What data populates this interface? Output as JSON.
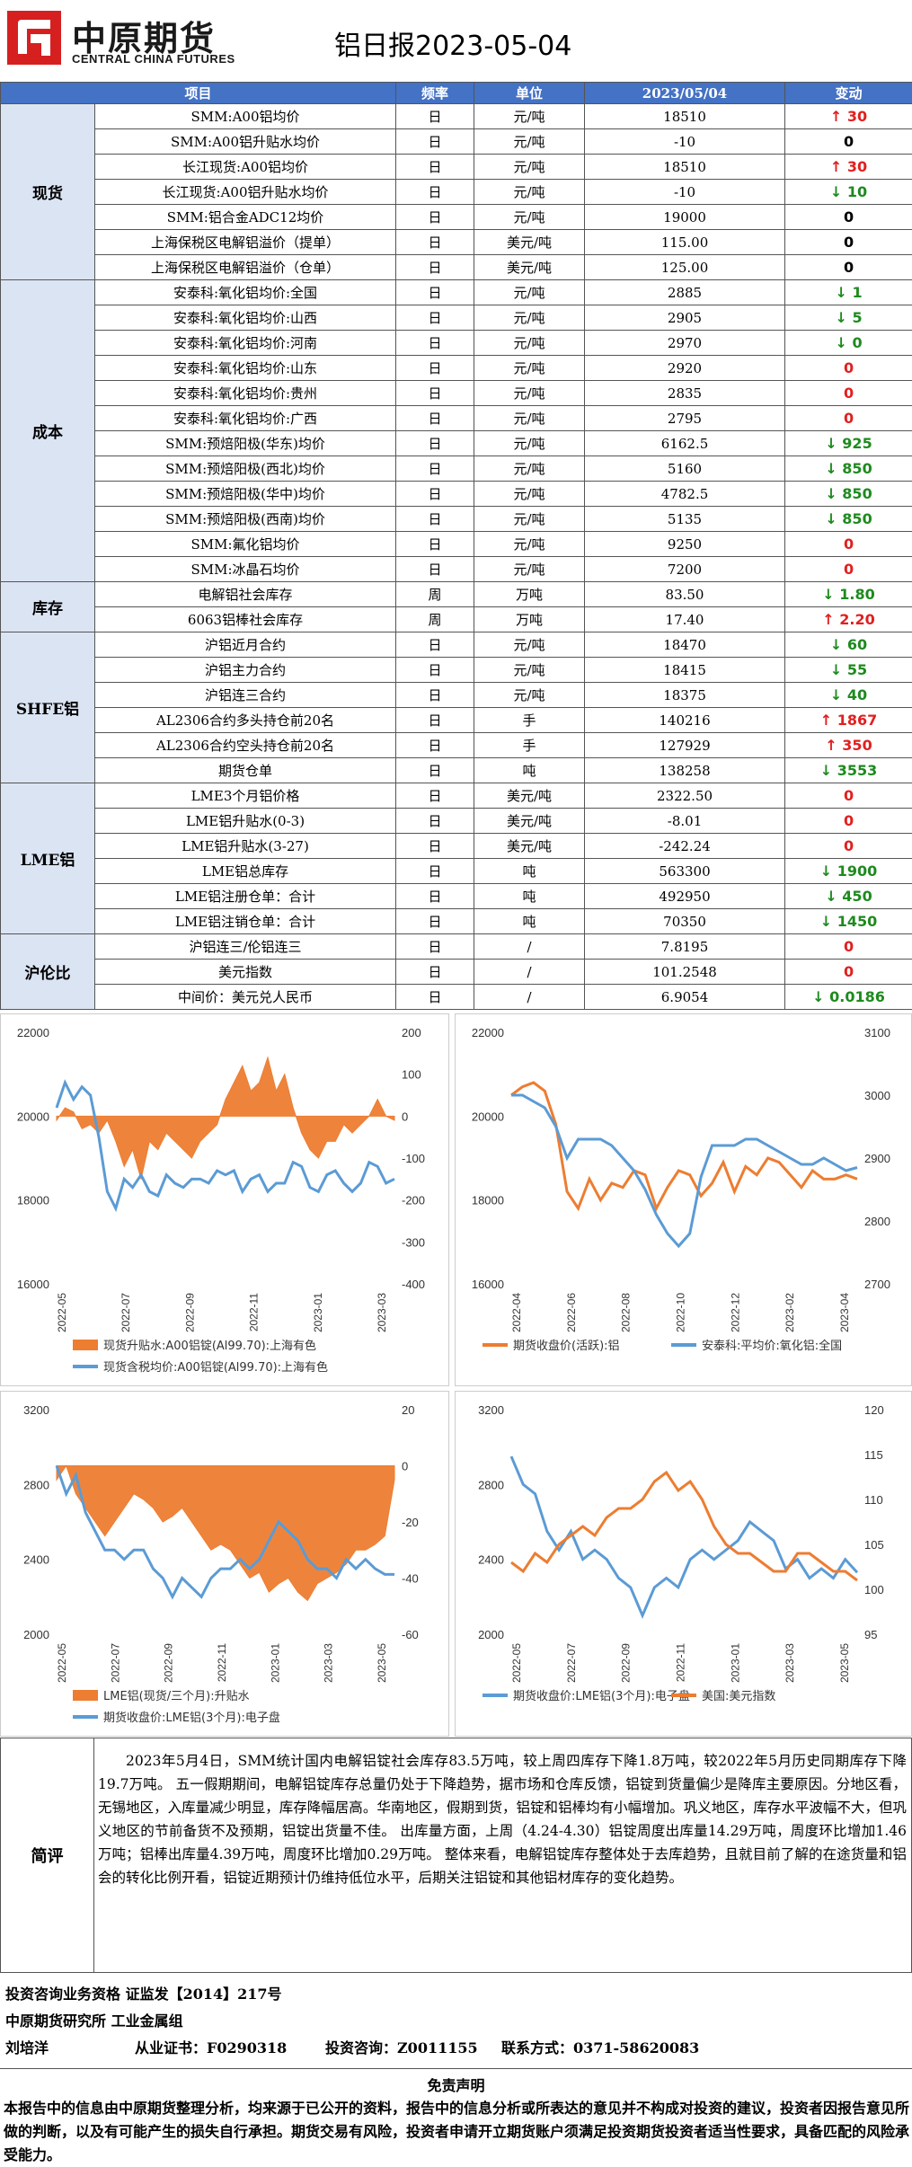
{
  "header": {
    "logo_cn": "中原期货",
    "logo_en": "CENTRAL CHINA FUTURES",
    "title": "铝日报2023-05-04"
  },
  "table": {
    "columns": [
      "项目",
      "频率",
      "单位",
      "2023/05/04",
      "变动"
    ],
    "groups": [
      {
        "category": "现货",
        "rows": [
          {
            "item": "SMM:A00铝均价",
            "freq": "日",
            "unit": "元/吨",
            "value": "18510",
            "change": "30",
            "dir": "up"
          },
          {
            "item": "SMM:A00铝升贴水均价",
            "freq": "日",
            "unit": "元/吨",
            "value": "-10",
            "change": "0",
            "dir": "flat"
          },
          {
            "item": "长江现货:A00铝均价",
            "freq": "日",
            "unit": "元/吨",
            "value": "18510",
            "change": "30",
            "dir": "up"
          },
          {
            "item": "长江现货:A00铝升贴水均价",
            "freq": "日",
            "unit": "元/吨",
            "value": "-10",
            "change": "10",
            "dir": "down"
          },
          {
            "item": "SMM:铝合金ADC12均价",
            "freq": "日",
            "unit": "元/吨",
            "value": "19000",
            "change": "0",
            "dir": "flat"
          },
          {
            "item": "上海保税区电解铝溢价（提单）",
            "freq": "日",
            "unit": "美元/吨",
            "value": "115.00",
            "change": "0",
            "dir": "flat"
          },
          {
            "item": "上海保税区电解铝溢价（仓单）",
            "freq": "日",
            "unit": "美元/吨",
            "value": "125.00",
            "change": "0",
            "dir": "flat"
          }
        ]
      },
      {
        "category": "成本",
        "rows": [
          {
            "item": "安泰科:氧化铝均价:全国",
            "freq": "日",
            "unit": "元/吨",
            "value": "2885",
            "change": "1",
            "dir": "down"
          },
          {
            "item": "安泰科:氧化铝均价:山西",
            "freq": "日",
            "unit": "元/吨",
            "value": "2905",
            "change": "5",
            "dir": "down"
          },
          {
            "item": "安泰科:氧化铝均价:河南",
            "freq": "日",
            "unit": "元/吨",
            "value": "2970",
            "change": "0",
            "dir": "down"
          },
          {
            "item": "安泰科:氧化铝均价:山东",
            "freq": "日",
            "unit": "元/吨",
            "value": "2920",
            "change": "0",
            "dir": "redzero"
          },
          {
            "item": "安泰科:氧化铝均价:贵州",
            "freq": "日",
            "unit": "元/吨",
            "value": "2835",
            "change": "0",
            "dir": "redzero"
          },
          {
            "item": "安泰科:氧化铝均价:广西",
            "freq": "日",
            "unit": "元/吨",
            "value": "2795",
            "change": "0",
            "dir": "redzero"
          },
          {
            "item": "SMM:预焙阳极(华东)均价",
            "freq": "日",
            "unit": "元/吨",
            "value": "6162.5",
            "change": "925",
            "dir": "down"
          },
          {
            "item": "SMM:预焙阳极(西北)均价",
            "freq": "日",
            "unit": "元/吨",
            "value": "5160",
            "change": "850",
            "dir": "down"
          },
          {
            "item": "SMM:预焙阳极(华中)均价",
            "freq": "日",
            "unit": "元/吨",
            "value": "4782.5",
            "change": "850",
            "dir": "down"
          },
          {
            "item": "SMM:预焙阳极(西南)均价",
            "freq": "日",
            "unit": "元/吨",
            "value": "5135",
            "change": "850",
            "dir": "down"
          },
          {
            "item": "SMM:氟化铝均价",
            "freq": "日",
            "unit": "元/吨",
            "value": "9250",
            "change": "0",
            "dir": "redzero"
          },
          {
            "item": "SMM:冰晶石均价",
            "freq": "日",
            "unit": "元/吨",
            "value": "7200",
            "change": "0",
            "dir": "redzero"
          }
        ]
      },
      {
        "category": "库存",
        "rows": [
          {
            "item": "电解铝社会库存",
            "freq": "周",
            "unit": "万吨",
            "value": "83.50",
            "change": "1.80",
            "dir": "down"
          },
          {
            "item": "6063铝棒社会库存",
            "freq": "周",
            "unit": "万吨",
            "value": "17.40",
            "change": "2.20",
            "dir": "up"
          }
        ]
      },
      {
        "category": "SHFE铝",
        "rows": [
          {
            "item": "沪铝近月合约",
            "freq": "日",
            "unit": "元/吨",
            "value": "18470",
            "change": "60",
            "dir": "down"
          },
          {
            "item": "沪铝主力合约",
            "freq": "日",
            "unit": "元/吨",
            "value": "18415",
            "change": "55",
            "dir": "down"
          },
          {
            "item": "沪铝连三合约",
            "freq": "日",
            "unit": "元/吨",
            "value": "18375",
            "change": "40",
            "dir": "down"
          },
          {
            "item": "AL2306合约多头持仓前20名",
            "freq": "日",
            "unit": "手",
            "value": "140216",
            "change": "1867",
            "dir": "up"
          },
          {
            "item": "AL2306合约空头持仓前20名",
            "freq": "日",
            "unit": "手",
            "value": "127929",
            "change": "350",
            "dir": "up"
          },
          {
            "item": "期货仓单",
            "freq": "日",
            "unit": "吨",
            "value": "138258",
            "change": "3553",
            "dir": "down"
          }
        ]
      },
      {
        "category": "LME铝",
        "rows": [
          {
            "item": "LME3个月铝价格",
            "freq": "日",
            "unit": "美元/吨",
            "value": "2322.50",
            "change": "0",
            "dir": "redzero"
          },
          {
            "item": "LME铝升贴水(0-3)",
            "freq": "日",
            "unit": "美元/吨",
            "value": "-8.01",
            "change": "0",
            "dir": "redzero"
          },
          {
            "item": "LME铝升贴水(3-27)",
            "freq": "日",
            "unit": "美元/吨",
            "value": "-242.24",
            "change": "0",
            "dir": "redzero"
          },
          {
            "item": "LME铝总库存",
            "freq": "日",
            "unit": "吨",
            "value": "563300",
            "change": "1900",
            "dir": "down"
          },
          {
            "item": "LME铝注册仓单：合计",
            "freq": "日",
            "unit": "吨",
            "value": "492950",
            "change": "450",
            "dir": "down"
          },
          {
            "item": "LME铝注销仓单：合计",
            "freq": "日",
            "unit": "吨",
            "value": "70350",
            "change": "1450",
            "dir": "down"
          }
        ]
      },
      {
        "category": "沪伦比",
        "rows": [
          {
            "item": "沪铝连三/伦铝连三",
            "freq": "日",
            "unit": "/",
            "value": "7.8195",
            "change": "0",
            "dir": "redzero"
          },
          {
            "item": "美元指数",
            "freq": "日",
            "unit": "/",
            "value": "101.2548",
            "change": "0",
            "dir": "redzero"
          },
          {
            "item": "中间价：美元兑人民币",
            "freq": "日",
            "unit": "/",
            "value": "6.9054",
            "change": "0.0186",
            "dir": "down"
          }
        ]
      }
    ]
  },
  "chart_data": [
    {
      "type": "line",
      "x_ticks": [
        "2022-05",
        "2022-07",
        "2022-09",
        "2022-11",
        "2023-01",
        "2023-03"
      ],
      "ylim_left": [
        16000,
        22000
      ],
      "ylim_right": [
        -400,
        200
      ],
      "yticks_left": [
        "22000",
        "20000",
        "18000",
        "16000"
      ],
      "yticks_right": [
        "200",
        "100",
        "0",
        "-100",
        "-200",
        "-300",
        "-400"
      ],
      "series": [
        {
          "name": "现货升贴水:A00铝锭(Al99.70):上海有色",
          "axis": "right",
          "kind": "area",
          "color": "#ed7d31",
          "values": [
            -10,
            20,
            10,
            -30,
            -20,
            -40,
            -10,
            -60,
            -120,
            -80,
            -150,
            -60,
            -80,
            -40,
            -60,
            -80,
            -100,
            -60,
            -40,
            -20,
            40,
            80,
            120,
            60,
            80,
            140,
            60,
            100,
            20,
            -40,
            -80,
            -100,
            -60,
            -60,
            -20,
            -40,
            -20,
            0,
            40,
            0,
            -10
          ]
        },
        {
          "name": "现货含税均价:A00铝锭(Al99.70):上海有色",
          "axis": "left",
          "kind": "line",
          "color": "#5b9bd5",
          "values": [
            20200,
            20800,
            20400,
            20700,
            20500,
            19500,
            18200,
            17800,
            18500,
            18300,
            18600,
            18200,
            18100,
            18600,
            18400,
            18300,
            18500,
            18500,
            18400,
            18700,
            18600,
            18700,
            18200,
            18500,
            18600,
            18200,
            18400,
            18400,
            18900,
            18800,
            18300,
            18200,
            18600,
            18700,
            18400,
            18200,
            18400,
            18900,
            18800,
            18400,
            18500
          ]
        }
      ]
    },
    {
      "type": "line",
      "x_ticks": [
        "2022-04",
        "2022-06",
        "2022-08",
        "2022-10",
        "2022-12",
        "2023-02",
        "2023-04"
      ],
      "ylim_left": [
        16000,
        22000
      ],
      "ylim_right": [
        2700,
        3100
      ],
      "yticks_left": [
        "22000",
        "20000",
        "18000",
        "16000"
      ],
      "yticks_right": [
        "3100",
        "3000",
        "2900",
        "2800",
        "2700"
      ],
      "series": [
        {
          "name": "期货收盘价(活跃):铝",
          "axis": "left",
          "kind": "line",
          "color": "#ed7d31",
          "values": [
            20500,
            20700,
            20800,
            20600,
            19800,
            18200,
            17800,
            18500,
            18000,
            18400,
            18300,
            18700,
            18600,
            17800,
            18300,
            18700,
            18600,
            18100,
            18400,
            18900,
            18200,
            18800,
            18600,
            19000,
            18900,
            18600,
            18300,
            18700,
            18500,
            18500,
            18600,
            18500
          ]
        },
        {
          "name": "安泰科:平均价:氧化铝:全国",
          "axis": "right",
          "kind": "line",
          "color": "#5b9bd5",
          "values": [
            3000,
            3000,
            2990,
            2980,
            2950,
            2900,
            2930,
            2930,
            2930,
            2920,
            2900,
            2880,
            2850,
            2810,
            2780,
            2760,
            2780,
            2870,
            2920,
            2920,
            2920,
            2930,
            2930,
            2920,
            2910,
            2900,
            2890,
            2890,
            2900,
            2890,
            2880,
            2885
          ]
        }
      ]
    },
    {
      "type": "line",
      "x_ticks": [
        "2022-05",
        "2022-07",
        "2022-09",
        "2022-11",
        "2023-01",
        "2023-03",
        "2023-05"
      ],
      "ylim_left": [
        2000,
        3200
      ],
      "ylim_right": [
        -60,
        20
      ],
      "yticks_left": [
        "3200",
        "2800",
        "2400",
        "2000"
      ],
      "yticks_right": [
        "20",
        "0",
        "-20",
        "-40",
        "-60"
      ],
      "series": [
        {
          "name": "LME铝(现货/三个月):升贴水",
          "axis": "right",
          "kind": "area",
          "color": "#ed7d31",
          "values": [
            -5,
            0,
            -10,
            -15,
            -20,
            -25,
            -20,
            -15,
            -10,
            -12,
            -15,
            -20,
            -18,
            -15,
            -20,
            -25,
            -30,
            -28,
            -30,
            -35,
            -40,
            -38,
            -45,
            -42,
            -40,
            -45,
            -48,
            -42,
            -40,
            -38,
            -35,
            -30,
            -30,
            -28,
            -25,
            -5
          ]
        },
        {
          "name": "期货收盘价:LME铝(3个月):电子盘",
          "axis": "left",
          "kind": "line",
          "color": "#5b9bd5",
          "values": [
            2900,
            2750,
            2850,
            2650,
            2550,
            2450,
            2450,
            2400,
            2450,
            2450,
            2350,
            2300,
            2200,
            2300,
            2250,
            2200,
            2300,
            2350,
            2350,
            2400,
            2350,
            2400,
            2500,
            2600,
            2550,
            2500,
            2400,
            2350,
            2350,
            2300,
            2400,
            2350,
            2400,
            2350,
            2320,
            2320
          ]
        }
      ]
    },
    {
      "type": "line",
      "x_ticks": [
        "2022-05",
        "2022-07",
        "2022-09",
        "2022-11",
        "2023-01",
        "2023-03",
        "2023-05"
      ],
      "ylim_left": [
        2000,
        3200
      ],
      "ylim_right": [
        95,
        120
      ],
      "yticks_left": [
        "3200",
        "2800",
        "2400",
        "2000"
      ],
      "yticks_right": [
        "120",
        "115",
        "110",
        "105",
        "100",
        "95"
      ],
      "series": [
        {
          "name": "期货收盘价:LME铝(3个月):电子盘",
          "axis": "left",
          "kind": "line",
          "color": "#5b9bd5",
          "values": [
            2950,
            2800,
            2750,
            2550,
            2450,
            2550,
            2400,
            2450,
            2400,
            2300,
            2250,
            2100,
            2250,
            2300,
            2250,
            2400,
            2450,
            2400,
            2450,
            2500,
            2600,
            2550,
            2500,
            2350,
            2400,
            2300,
            2350,
            2300,
            2400,
            2330
          ]
        },
        {
          "name": "美国:美元指数",
          "axis": "right",
          "kind": "line",
          "color": "#ed7d31",
          "values": [
            103,
            102,
            104,
            103,
            105,
            106,
            107,
            106,
            108,
            109,
            109,
            110,
            112,
            113,
            111,
            112,
            110,
            107,
            105,
            104,
            104,
            103,
            102,
            102,
            104,
            104,
            103,
            102,
            102,
            101
          ]
        }
      ]
    }
  ],
  "comment": {
    "label": "简评",
    "text": "2023年5月4日，SMM统计国内电解铝锭社会库存83.5万吨，较上周四库存下降1.8万吨，较2022年5月历史同期库存下降19.7万吨。 五一假期期间，电解铝锭库存总量仍处于下降趋势，据市场和仓库反馈，铝锭到货量偏少是降库主要原因。分地区看，无锡地区，入库量减少明显，库存降幅居高。华南地区，假期到货，铝锭和铝棒均有小幅增加。巩义地区，库存水平波幅不大，但巩义地区的节前备货不及预期，铝锭出货量不佳。 出库量方面，上周（4.24-4.30）铝锭周度出库量14.29万吨，周度环比增加1.46万吨；铝棒出库量4.39万吨，周度环比增加0.29万吨。 整体来看，电解铝锭库存整体处于去库趋势，且就目前了解的在途货量和铝会的转化比例开看，铝锭近期预计仍维持低位水平，后期关注铝锭和其他铝材库存的变化趋势。"
  },
  "footer": {
    "line1": "投资咨询业务资格  证监发【2014】217号",
    "line2": "中原期货研究所  工业金属组",
    "line3_name": "刘培洋",
    "line3_cert": "从业证书：F0290318",
    "line3_consult": "投资咨询：Z0011155",
    "line3_contact": "联系方式：0371-58620083",
    "disclaimer_title": "免责声明",
    "disclaimer": "本报告中的信息由中原期货整理分析，均来源于已公开的资料，报告中的信息分析或所表达的意见并不构成对投资的建议，投资者因报告意见所做的判断，以及有可能产生的损失自行承担。期货交易有风险，投资者申请开立期货账户须满足投资期货投资者适当性要求，具备匹配的风险承受能力。"
  },
  "colors": {
    "header_bg": "#4472c4",
    "category_bg": "#dbe4f3",
    "up": "#e02020",
    "down": "#1e8a1e",
    "orange": "#ed7d31",
    "blue": "#5b9bd5"
  }
}
